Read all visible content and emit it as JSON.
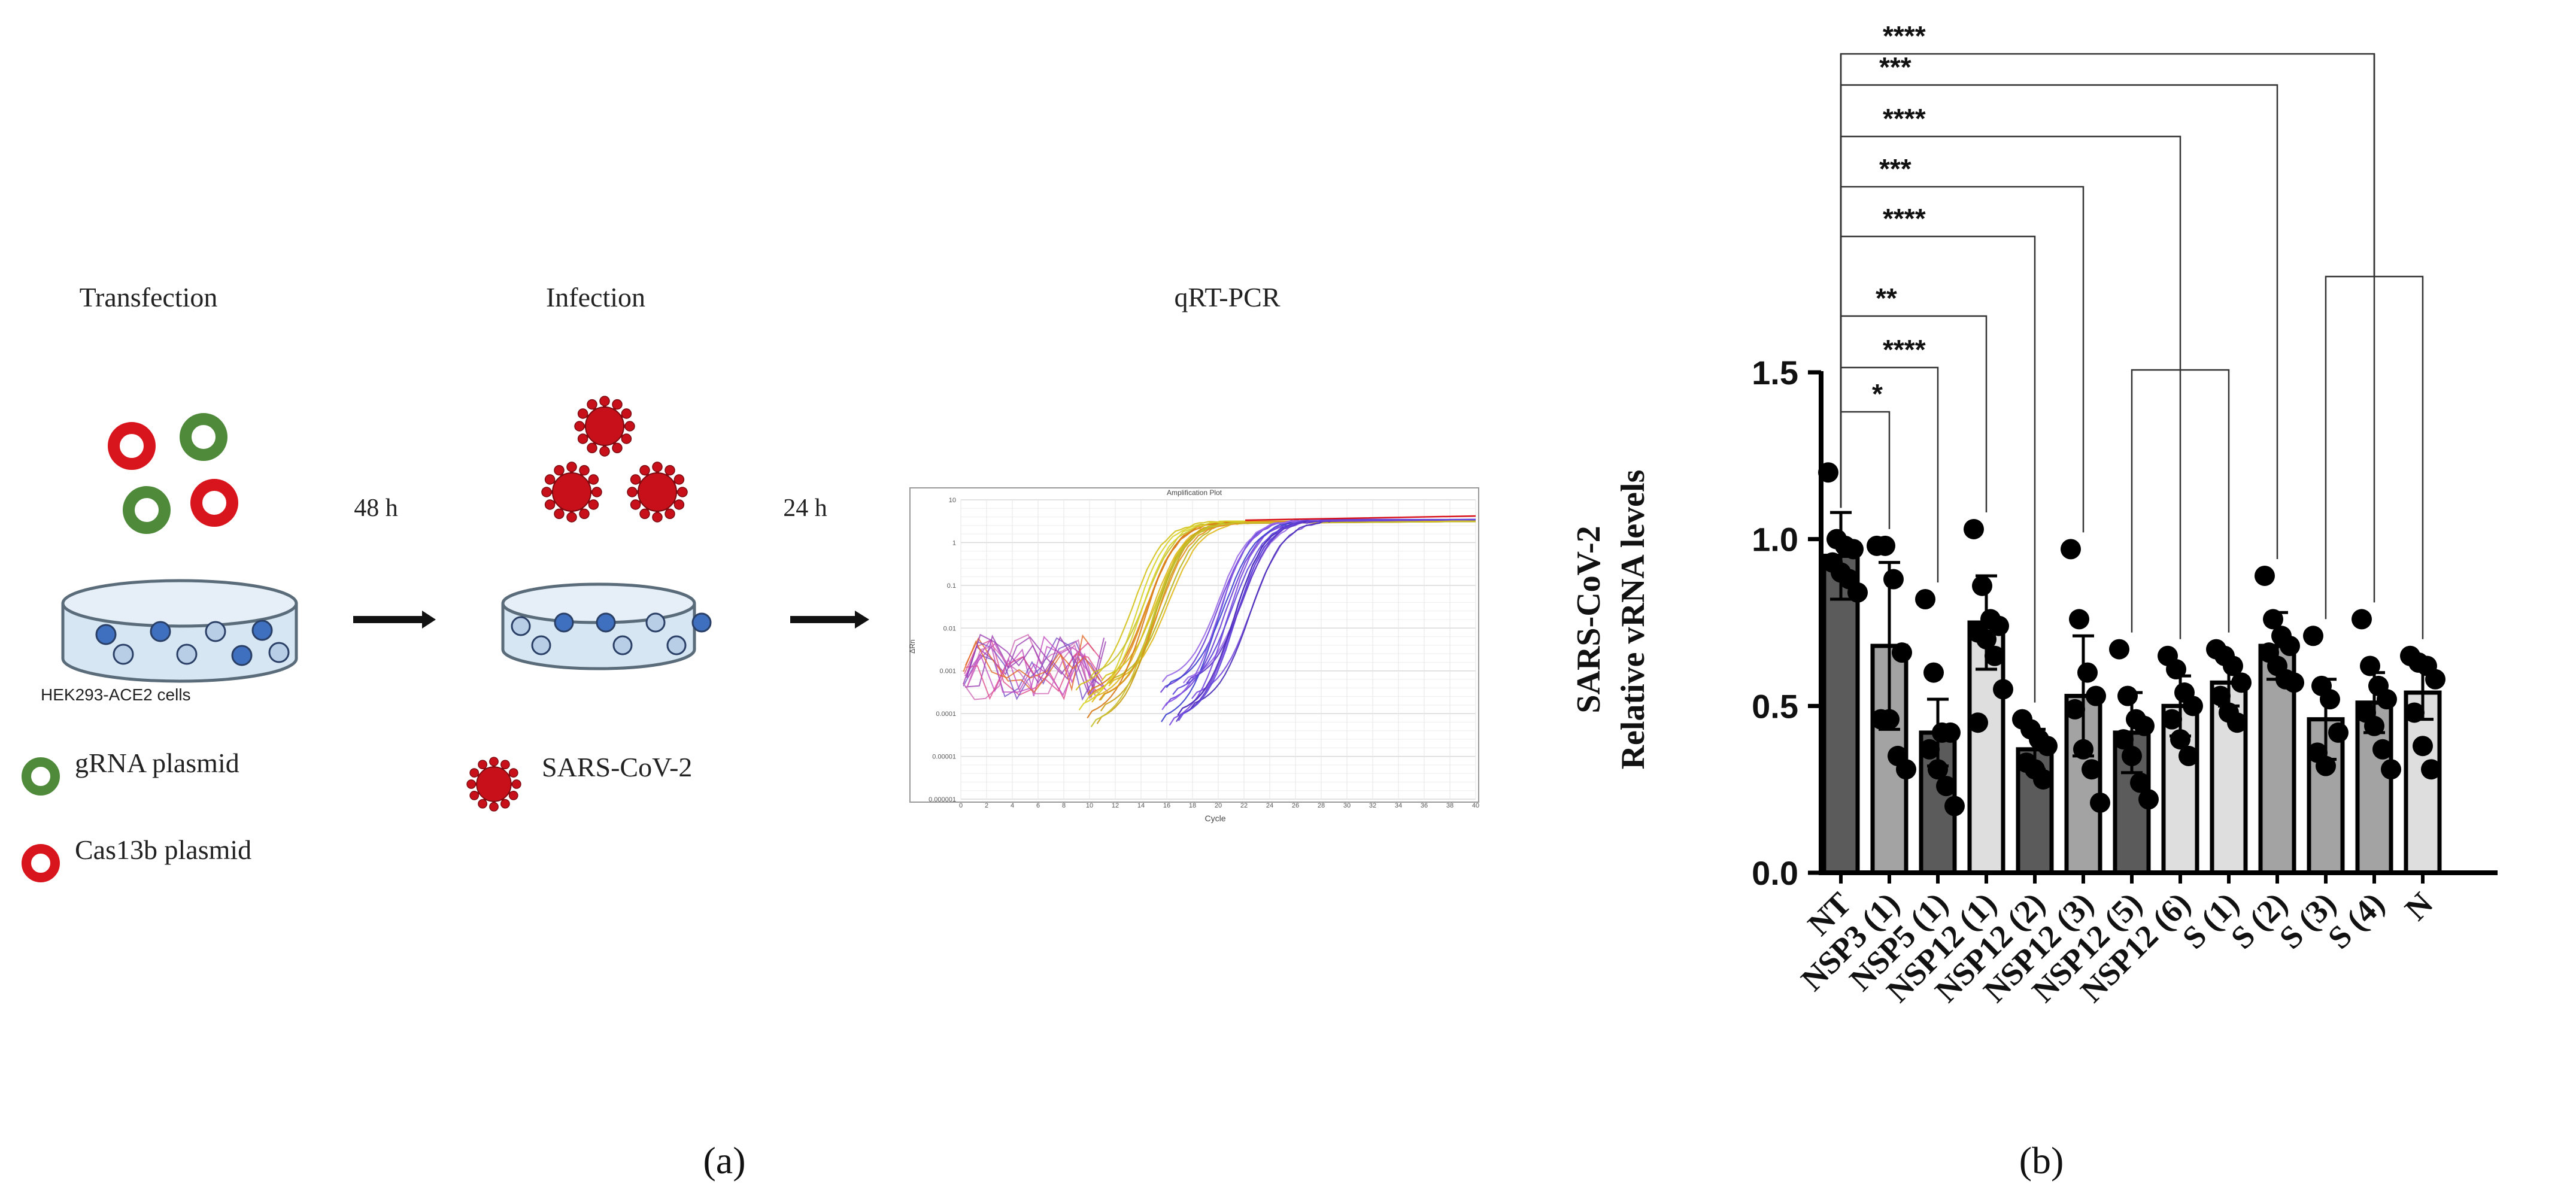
{
  "panel_a": {
    "step_labels": [
      "Transfection",
      "Infection",
      "qRT-PCR"
    ],
    "arrow_labels": [
      "48 h",
      "24 h"
    ],
    "cell_label": "HEK293-ACE2 cells",
    "legend": [
      "gRNA plasmid",
      "Cas13b plasmid",
      "SARS-CoV-2"
    ],
    "caption": "(a)",
    "amp_plot": {
      "title": "Amplification Plot",
      "xlabel": "Cycle",
      "ylabel": "ΔRn",
      "y_ticks": [
        "10",
        "1",
        "0.1",
        "0.01",
        "0.001",
        "0.0001",
        "0.00001",
        "0.000001"
      ],
      "x_ticks": [
        "0",
        "2",
        "4",
        "6",
        "8",
        "10",
        "12",
        "14",
        "16",
        "18",
        "20",
        "22",
        "24",
        "26",
        "28",
        "30",
        "32",
        "34",
        "36",
        "38",
        "40"
      ]
    }
  },
  "panel_b": {
    "caption": "(b)"
  },
  "colors": {
    "gRNA": "#4e8a3a",
    "cas13b": "#d8141c",
    "virus": "#c8101a",
    "dish": "#d7e6f3",
    "dark_bar": "#5b5b5b",
    "mid_bar": "#a3a3a3",
    "light_bar": "#dedede"
  },
  "chart_data": {
    "type": "bar",
    "ylabel": [
      "SARS-CoV-2",
      "Relative vRNA levels"
    ],
    "ylim": [
      0,
      1.5
    ],
    "yticks": [
      "0.0",
      "0.5",
      "1.0",
      "1.5"
    ],
    "categories": [
      "NT",
      "NSP3 (1)",
      "NSP5 (1)",
      "NSP12 (1)",
      "NSP12 (2)",
      "NSP12 (3)",
      "NSP12 (5)",
      "NSP12 (6)",
      "S (1)",
      "S (2)",
      "S (3)",
      "S (4)",
      "N"
    ],
    "values": [
      0.95,
      0.68,
      0.42,
      0.75,
      0.37,
      0.53,
      0.42,
      0.5,
      0.57,
      0.68,
      0.46,
      0.51,
      0.54
    ],
    "errors": [
      0.13,
      0.25,
      0.1,
      0.14,
      0.06,
      0.18,
      0.12,
      0.09,
      0.07,
      0.1,
      0.12,
      0.09,
      0.08
    ],
    "shades": [
      "dark",
      "mid",
      "dark",
      "light",
      "dark",
      "mid",
      "dark",
      "light",
      "light",
      "mid",
      "mid",
      "mid",
      "light"
    ],
    "points": [
      [
        1.2,
        1.0,
        0.98,
        0.97,
        0.93,
        0.9,
        0.88,
        0.84
      ],
      [
        0.98,
        0.98,
        0.88,
        0.66,
        0.46,
        0.46,
        0.35,
        0.31
      ],
      [
        0.82,
        0.6,
        0.42,
        0.42,
        0.37,
        0.31,
        0.26,
        0.2
      ],
      [
        1.03,
        0.86,
        0.76,
        0.74,
        0.72,
        0.7,
        0.65,
        0.55,
        0.45
      ],
      [
        0.46,
        0.43,
        0.4,
        0.38,
        0.33,
        0.31,
        0.28
      ],
      [
        0.97,
        0.76,
        0.6,
        0.53,
        0.49,
        0.37,
        0.31,
        0.21
      ],
      [
        0.67,
        0.53,
        0.46,
        0.44,
        0.4,
        0.35,
        0.27,
        0.22
      ],
      [
        0.65,
        0.61,
        0.54,
        0.5,
        0.46,
        0.4,
        0.35
      ],
      [
        0.67,
        0.65,
        0.62,
        0.57,
        0.53,
        0.48,
        0.45
      ],
      [
        0.89,
        0.76,
        0.71,
        0.68,
        0.66,
        0.62,
        0.58,
        0.57
      ],
      [
        0.71,
        0.56,
        0.52,
        0.42,
        0.36,
        0.32
      ],
      [
        0.76,
        0.62,
        0.56,
        0.52,
        0.48,
        0.44,
        0.37,
        0.31
      ],
      [
        0.65,
        0.63,
        0.62,
        0.58,
        0.48,
        0.38,
        0.31
      ]
    ],
    "significance": [
      {
        "from": 0,
        "to": 1,
        "label": "*"
      },
      {
        "from": 0,
        "to": 2,
        "label": "****"
      },
      {
        "from": 0,
        "to": 3,
        "label": "**"
      },
      {
        "from": 0,
        "to": 4,
        "label": "****"
      },
      {
        "from": 0,
        "to": 5,
        "label": "***"
      },
      {
        "from": 0,
        "to": 7,
        "label": "****"
      },
      {
        "from": 0,
        "to": 9,
        "label": "***"
      },
      {
        "from": 0,
        "to": 11,
        "label": "****"
      }
    ],
    "unlabeled_brackets": [
      {
        "from": 6,
        "to": 8
      },
      {
        "from": 10,
        "to": 12
      }
    ]
  }
}
